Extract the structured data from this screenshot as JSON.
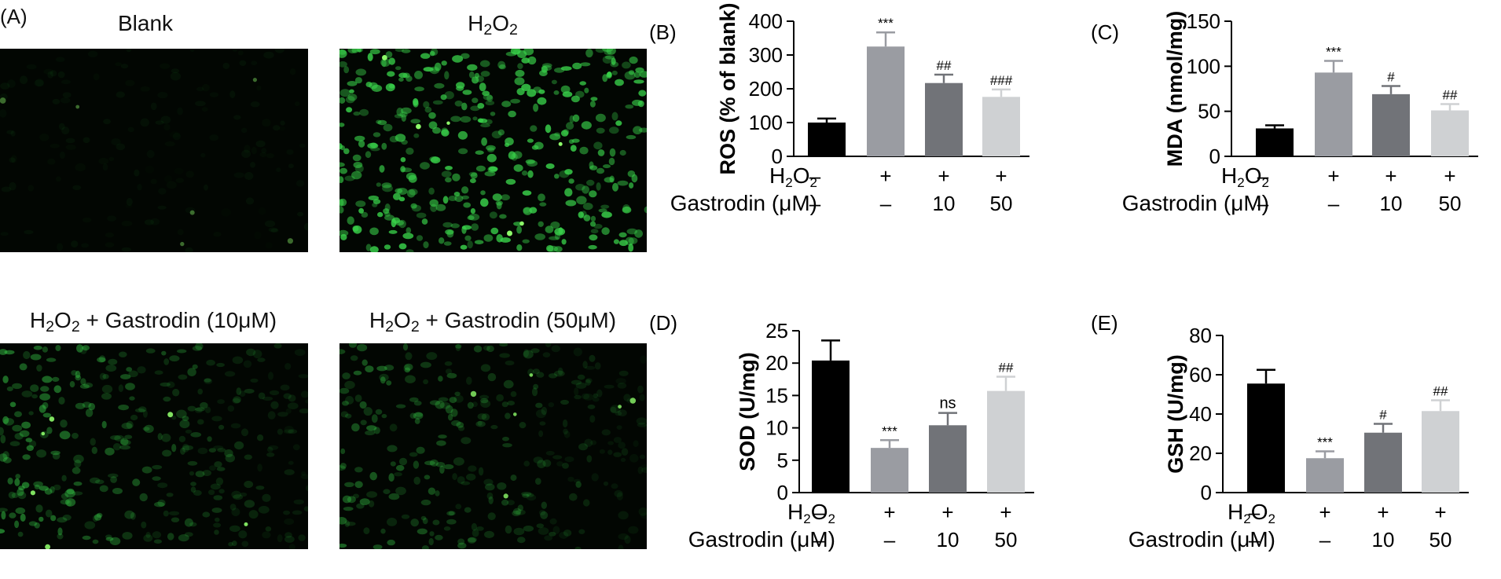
{
  "panel_a": {
    "letter": "(A)",
    "images": [
      {
        "title": "Blank",
        "title_html": "Blank",
        "intensity": 0.06,
        "density": 0.35
      },
      {
        "title": "H2O2",
        "title_html": "H<sub>2</sub>O<sub>2</sub>",
        "intensity": 0.85,
        "density": 1.0
      },
      {
        "title": "H2O2 + Gastrodin (10μM)",
        "title_html": "H<sub>2</sub>O<sub>2</sub> + Gastrodin (10μM)",
        "intensity": 0.55,
        "density": 0.8
      },
      {
        "title": "H2O2 + Gastrodin (50μM)",
        "title_html": "H<sub>2</sub>O<sub>2</sub> + Gastrodin (50μM)",
        "intensity": 0.45,
        "density": 0.75
      }
    ]
  },
  "colors": {
    "bars": [
      "#000000",
      "#9a9ca2",
      "#717378",
      "#cfd1d3"
    ],
    "cells": "#39d14a"
  },
  "chart_data": [
    {
      "panel": "(B)",
      "type": "bar",
      "categories": [
        "Blank",
        "H2O2",
        "H2O2 + Gastrodin 10",
        "H2O2 + Gastrodin 50"
      ],
      "values": [
        100,
        325,
        217,
        176
      ],
      "errors": [
        12,
        42,
        25,
        22
      ],
      "annotations": [
        "",
        "***",
        "##",
        "###"
      ],
      "ylabel": "ROS (% of blank)",
      "ylim": [
        0,
        400
      ],
      "yticks": [
        0,
        100,
        200,
        300,
        400
      ],
      "treatment_labels": [
        "H2O2",
        "Gastrodin (μM)"
      ],
      "h2o2_row": [
        "–",
        "+",
        "+",
        "+"
      ],
      "gastrodin_row": [
        "–",
        "–",
        "10",
        "50"
      ]
    },
    {
      "panel": "(C)",
      "type": "bar",
      "categories": [
        "Blank",
        "H2O2",
        "H2O2 + Gastrodin 10",
        "H2O2 + Gastrodin 50"
      ],
      "values": [
        31,
        93,
        69,
        51
      ],
      "errors": [
        3.5,
        13,
        9,
        7
      ],
      "annotations": [
        "",
        "***",
        "#",
        "##"
      ],
      "ylabel": "MDA (nmol/mg)",
      "ylim": [
        0,
        150
      ],
      "yticks": [
        0,
        50,
        100,
        150
      ],
      "treatment_labels": [
        "H2O2",
        "Gastrodin (μM)"
      ],
      "h2o2_row": [
        "–",
        "+",
        "+",
        "+"
      ],
      "gastrodin_row": [
        "–",
        "–",
        "10",
        "50"
      ]
    },
    {
      "panel": "(D)",
      "type": "bar",
      "categories": [
        "Blank",
        "H2O2",
        "H2O2 + Gastrodin 10",
        "H2O2 + Gastrodin 50"
      ],
      "values": [
        20.4,
        6.9,
        10.4,
        15.7
      ],
      "errors": [
        3.1,
        1.2,
        1.9,
        2.2
      ],
      "annotations": [
        "",
        "***",
        "ns",
        "##"
      ],
      "ylabel": "SOD (U/mg)",
      "ylim": [
        0,
        25
      ],
      "yticks": [
        0,
        5,
        10,
        15,
        20,
        25
      ],
      "treatment_labels": [
        "H2O2",
        "Gastrodin (μM)"
      ],
      "h2o2_row": [
        "–",
        "+",
        "+",
        "+"
      ],
      "gastrodin_row": [
        "–",
        "–",
        "10",
        "50"
      ]
    },
    {
      "panel": "(E)",
      "type": "bar",
      "categories": [
        "Blank",
        "H2O2",
        "H2O2 + Gastrodin 10",
        "H2O2 + Gastrodin 50"
      ],
      "values": [
        55.5,
        17.5,
        30.5,
        41.5
      ],
      "errors": [
        7,
        3.5,
        4.5,
        5.5
      ],
      "annotations": [
        "",
        "***",
        "#",
        "##"
      ],
      "ylabel": "GSH (U/mg)",
      "ylim": [
        0,
        80
      ],
      "yticks": [
        0,
        20,
        40,
        60,
        80
      ],
      "treatment_labels": [
        "H2O2",
        "Gastrodin (μM)"
      ],
      "h2o2_row": [
        "–",
        "+",
        "+",
        "+"
      ],
      "gastrodin_row": [
        "–",
        "–",
        "10",
        "50"
      ]
    }
  ]
}
